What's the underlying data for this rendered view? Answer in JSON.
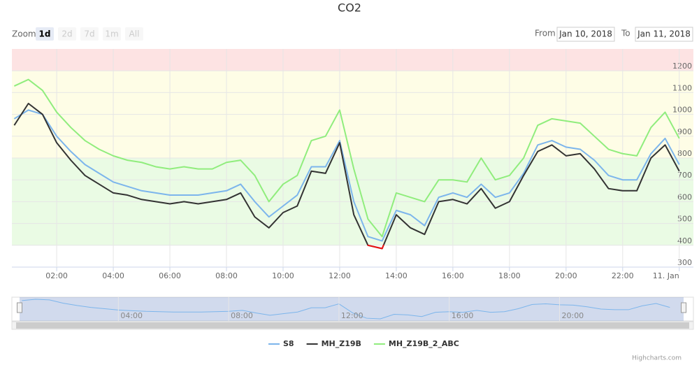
{
  "chart_data": {
    "type": "line",
    "title": "CO2",
    "range_selector": {
      "zoom_label": "Zoom",
      "buttons": [
        "1d",
        "2d",
        "7d",
        "1m",
        "All"
      ],
      "from_label": "From",
      "from": "Jan 10, 2018",
      "to_label": "To",
      "to": "Jan 11, 2018"
    },
    "credits": "Highcharts.com",
    "x": [
      "00:30",
      "01:00",
      "01:30",
      "02:00",
      "02:30",
      "03:00",
      "03:30",
      "04:00",
      "04:30",
      "05:00",
      "05:30",
      "06:00",
      "06:30",
      "07:00",
      "07:30",
      "08:00",
      "08:30",
      "09:00",
      "09:30",
      "10:00",
      "10:30",
      "11:00",
      "11:30",
      "12:00",
      "12:30",
      "13:00",
      "13:30",
      "14:00",
      "14:30",
      "15:00",
      "15:30",
      "16:00",
      "16:30",
      "17:00",
      "17:30",
      "18:00",
      "18:30",
      "19:00",
      "19:30",
      "20:00",
      "20:30",
      "21:00",
      "21:30",
      "22:00",
      "22:30",
      "23:00",
      "23:30",
      "24:00"
    ],
    "xlim": [
      "00:25",
      "24:30"
    ],
    "xticks": [
      "02:00",
      "04:00",
      "06:00",
      "08:00",
      "10:00",
      "12:00",
      "14:00",
      "16:00",
      "18:00",
      "20:00",
      "22:00",
      {
        "value": "24:00",
        "label": "11. Jan"
      }
    ],
    "ylim": [
      300,
      1300
    ],
    "yticks": [
      300,
      400,
      500,
      600,
      700,
      800,
      900,
      1000,
      1100,
      1200
    ],
    "grid": true,
    "plot_bands": [
      {
        "from": 400,
        "to": 800,
        "color": "#eafbe4"
      },
      {
        "from": 800,
        "to": 1200,
        "color": "#fefde6"
      },
      {
        "from": 1200,
        "to": 1300,
        "color": "#fde3e3"
      }
    ],
    "legend": "bottom",
    "series": [
      {
        "name": "S8",
        "color": "#7cb5ec",
        "values": [
          980,
          1020,
          1000,
          900,
          830,
          770,
          730,
          690,
          670,
          650,
          640,
          630,
          630,
          630,
          640,
          650,
          680,
          600,
          530,
          580,
          630,
          760,
          760,
          880,
          600,
          440,
          420,
          560,
          540,
          490,
          620,
          640,
          620,
          680,
          620,
          640,
          730,
          860,
          880,
          850,
          840,
          790,
          720,
          700,
          700,
          820,
          890,
          770
        ]
      },
      {
        "name": "MH_Z19B",
        "color": "#333333",
        "zone_threshold": 400,
        "zone_color": "#ee1111",
        "values": [
          950,
          1050,
          1000,
          870,
          790,
          720,
          680,
          640,
          630,
          610,
          600,
          590,
          600,
          590,
          600,
          610,
          640,
          530,
          480,
          550,
          580,
          740,
          730,
          870,
          540,
          400,
          385,
          540,
          480,
          450,
          600,
          610,
          590,
          660,
          570,
          600,
          720,
          830,
          860,
          810,
          820,
          750,
          660,
          650,
          650,
          800,
          860,
          740
        ]
      },
      {
        "name": "MH_Z19B_2_ABC",
        "color": "#90ed7d",
        "values": [
          1130,
          1160,
          1110,
          1010,
          940,
          880,
          840,
          810,
          790,
          780,
          760,
          750,
          760,
          750,
          750,
          780,
          790,
          720,
          600,
          680,
          720,
          880,
          900,
          1020,
          750,
          520,
          440,
          640,
          620,
          600,
          700,
          700,
          690,
          800,
          700,
          720,
          800,
          950,
          980,
          970,
          960,
          900,
          840,
          820,
          810,
          940,
          1010,
          890
        ]
      }
    ]
  }
}
